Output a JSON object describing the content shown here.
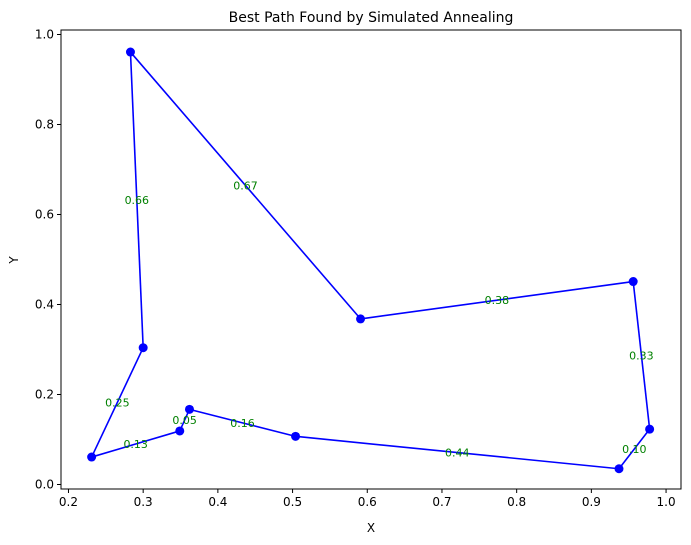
{
  "chart_data": {
    "type": "line",
    "title": "Best Path Found by Simulated Annealing",
    "xlabel": "X",
    "ylabel": "Y",
    "xlim": [
      0.19,
      1.02
    ],
    "ylim": [
      -0.01,
      1.01
    ],
    "x_ticks": [
      0.2,
      0.3,
      0.4,
      0.5,
      0.6,
      0.7,
      0.8,
      0.9,
      1.0
    ],
    "x_tick_labels": [
      "0.2",
      "0.3",
      "0.4",
      "0.5",
      "0.6",
      "0.7",
      "0.8",
      "0.9",
      "1.0"
    ],
    "y_ticks": [
      0.0,
      0.2,
      0.4,
      0.6,
      0.8,
      1.0
    ],
    "y_tick_labels": [
      "0.0",
      "0.2",
      "0.4",
      "0.6",
      "0.8",
      "1.0"
    ],
    "grid": false,
    "line_color": "#0000ff",
    "marker_color": "#0000ff",
    "label_color": "#008000",
    "path": [
      {
        "x": 0.591,
        "y": 0.368
      },
      {
        "x": 0.956,
        "y": 0.451
      },
      {
        "x": 0.978,
        "y": 0.123
      },
      {
        "x": 0.937,
        "y": 0.035
      },
      {
        "x": 0.504,
        "y": 0.107
      },
      {
        "x": 0.362,
        "y": 0.167
      },
      {
        "x": 0.349,
        "y": 0.119
      },
      {
        "x": 0.231,
        "y": 0.061
      },
      {
        "x": 0.3,
        "y": 0.304
      },
      {
        "x": 0.283,
        "y": 0.961
      },
      {
        "x": 0.591,
        "y": 0.368
      }
    ],
    "edge_labels": [
      "0.38",
      "0.33",
      "0.10",
      "0.44",
      "0.16",
      "0.05",
      "0.13",
      "0.25",
      "0.66",
      "0.67"
    ]
  }
}
